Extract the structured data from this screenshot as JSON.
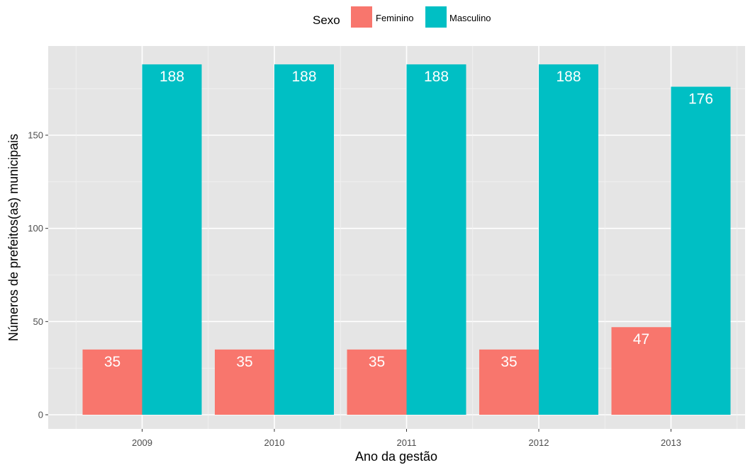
{
  "chart_data": {
    "type": "bar",
    "title": "",
    "xlabel": "Ano da gestão",
    "ylabel": "Números de prefeitos(as) municipais",
    "categories": [
      "2009",
      "2010",
      "2011",
      "2012",
      "2013"
    ],
    "series": [
      {
        "name": "Feminino",
        "color": "#F8766D",
        "values": [
          35,
          35,
          35,
          35,
          47
        ]
      },
      {
        "name": "Masculino",
        "color": "#00BFC4",
        "values": [
          188,
          188,
          188,
          188,
          176
        ]
      }
    ],
    "ylim": [
      0,
      197
    ],
    "yticks": [
      0,
      50,
      100,
      150
    ],
    "grid": true,
    "panel_background": "#E5E5E5",
    "legend": {
      "title": "Sexo",
      "position": "top"
    }
  }
}
